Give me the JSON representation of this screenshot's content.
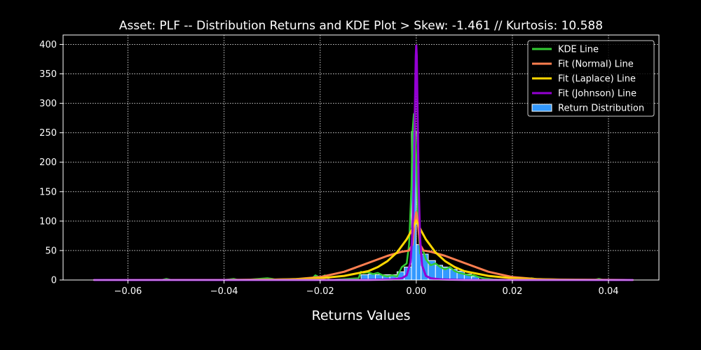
{
  "chart_data": {
    "type": "histogram",
    "title": "Asset: PLF -- Distribution Returns and KDE Plot > Skew: -1.461 // Kurtosis: 10.588",
    "xlabel": "Returns Values",
    "ylabel": "",
    "xlim": [
      -0.0735,
      0.0505
    ],
    "ylim": [
      0,
      416
    ],
    "x_ticks": [
      -0.06,
      -0.04,
      -0.02,
      0.0,
      0.02,
      0.04
    ],
    "x_tick_labels": [
      "−0.06",
      "−0.04",
      "−0.02",
      "0.00",
      "0.02",
      "0.04"
    ],
    "y_ticks": [
      0,
      50,
      100,
      150,
      200,
      250,
      300,
      350,
      400
    ],
    "y_tick_labels": [
      "0",
      "50",
      "100",
      "150",
      "200",
      "250",
      "300",
      "350",
      "400"
    ],
    "grid": true,
    "legend_position": "top-right",
    "background": "#000000",
    "histogram": {
      "name": "Return Distribution",
      "color": "#3399ff",
      "edge_color": "#ffffff",
      "bins": [
        {
          "x0": -0.0115,
          "x1": -0.01,
          "count": 9
        },
        {
          "x0": -0.01,
          "x1": -0.0085,
          "count": 10
        },
        {
          "x0": -0.0085,
          "x1": -0.007,
          "count": 9
        },
        {
          "x0": -0.007,
          "x1": -0.0055,
          "count": 9
        },
        {
          "x0": -0.0055,
          "x1": -0.004,
          "count": 9
        },
        {
          "x0": -0.004,
          "x1": -0.0025,
          "count": 14
        },
        {
          "x0": -0.0025,
          "x1": -0.001,
          "count": 22
        },
        {
          "x0": -0.001,
          "x1": 0.0,
          "count": 252
        },
        {
          "x0": 0.0,
          "x1": 0.001,
          "count": 60
        },
        {
          "x0": 0.001,
          "x1": 0.0025,
          "count": 44
        },
        {
          "x0": 0.0025,
          "x1": 0.004,
          "count": 33
        },
        {
          "x0": 0.004,
          "x1": 0.0055,
          "count": 25
        },
        {
          "x0": 0.0055,
          "x1": 0.007,
          "count": 22
        },
        {
          "x0": 0.007,
          "x1": 0.0085,
          "count": 18
        },
        {
          "x0": 0.0085,
          "x1": 0.01,
          "count": 15
        },
        {
          "x0": 0.01,
          "x1": 0.0115,
          "count": 10
        },
        {
          "x0": 0.0115,
          "x1": 0.013,
          "count": 6
        }
      ]
    },
    "series": [
      {
        "name": "KDE Line",
        "color": "#33cc33",
        "line_width": 2.5,
        "x": [
          -0.067,
          -0.053,
          -0.052,
          -0.051,
          -0.04,
          -0.038,
          -0.037,
          -0.036,
          -0.031,
          -0.03,
          -0.029,
          -0.022,
          -0.021,
          -0.02,
          -0.019,
          -0.018,
          -0.012,
          -0.0115,
          -0.011,
          -0.01,
          -0.009,
          -0.008,
          -0.007,
          -0.006,
          -0.005,
          -0.004,
          -0.003,
          -0.002,
          -0.0015,
          -0.001,
          -0.0008,
          -0.0005,
          -0.0003,
          0.0,
          0.0002,
          0.0004,
          0.0006,
          0.0008,
          0.001,
          0.0015,
          0.002,
          0.0025,
          0.003,
          0.004,
          0.005,
          0.006,
          0.007,
          0.008,
          0.009,
          0.01,
          0.011,
          0.012,
          0.013,
          0.014,
          0.016,
          0.02,
          0.022,
          0.023,
          0.024,
          0.026,
          0.037,
          0.038,
          0.039,
          0.045
        ],
        "y": [
          0,
          0,
          2,
          0,
          0,
          2,
          0,
          0,
          3,
          2,
          0,
          0,
          8,
          4,
          8,
          0,
          3,
          14,
          12,
          13,
          10,
          12,
          8,
          6,
          8,
          6,
          22,
          28,
          60,
          160,
          250,
          282,
          270,
          210,
          150,
          100,
          70,
          45,
          50,
          48,
          35,
          30,
          25,
          28,
          22,
          18,
          22,
          15,
          12,
          10,
          8,
          8,
          5,
          3,
          1,
          0,
          3,
          2,
          3,
          0,
          0,
          2,
          0,
          0
        ]
      },
      {
        "name": "Fit (Normal) Line",
        "color": "#ff7f50",
        "line_width": 3,
        "x": [
          -0.067,
          -0.04,
          -0.03,
          -0.025,
          -0.02,
          -0.015,
          -0.01,
          -0.006,
          -0.003,
          -0.0015,
          -0.0008,
          -0.0003,
          0.0,
          0.0003,
          0.0008,
          0.0015,
          0.003,
          0.006,
          0.01,
          0.015,
          0.02,
          0.025,
          0.03,
          0.045
        ],
        "y": [
          0,
          0,
          0.5,
          1.5,
          5,
          14,
          29,
          41,
          48,
          50,
          60,
          100,
          115,
          100,
          60,
          50,
          48,
          41,
          29,
          14,
          5,
          1.5,
          0.5,
          0
        ]
      },
      {
        "name": "Fit (Laplace) Line",
        "color": "#ffd700",
        "line_width": 3,
        "x": [
          -0.067,
          -0.04,
          -0.03,
          -0.025,
          -0.02,
          -0.015,
          -0.01,
          -0.008,
          -0.006,
          -0.004,
          -0.002,
          -0.001,
          0.0,
          0.001,
          0.002,
          0.004,
          0.006,
          0.008,
          0.01,
          0.015,
          0.02,
          0.025,
          0.03,
          0.045
        ],
        "y": [
          0,
          0.2,
          0.8,
          1.5,
          3,
          7,
          15,
          22,
          32,
          47,
          69,
          84,
          101,
          84,
          69,
          47,
          32,
          22,
          15,
          7,
          3,
          1.5,
          0.8,
          0
        ]
      },
      {
        "name": "Fit (Johnson) Line",
        "color": "#9400d3",
        "line_width": 3,
        "x": [
          -0.067,
          -0.01,
          -0.005,
          -0.003,
          -0.002,
          -0.0012,
          -0.0008,
          -0.0005,
          -0.0003,
          -0.0001,
          0.0,
          0.0001,
          0.0003,
          0.0005,
          0.0008,
          0.0012,
          0.002,
          0.003,
          0.005,
          0.01,
          0.045
        ],
        "y": [
          0,
          0,
          1,
          3,
          8,
          30,
          80,
          160,
          280,
          380,
          398,
          380,
          270,
          160,
          70,
          25,
          7,
          3,
          1,
          0,
          0
        ]
      }
    ]
  }
}
